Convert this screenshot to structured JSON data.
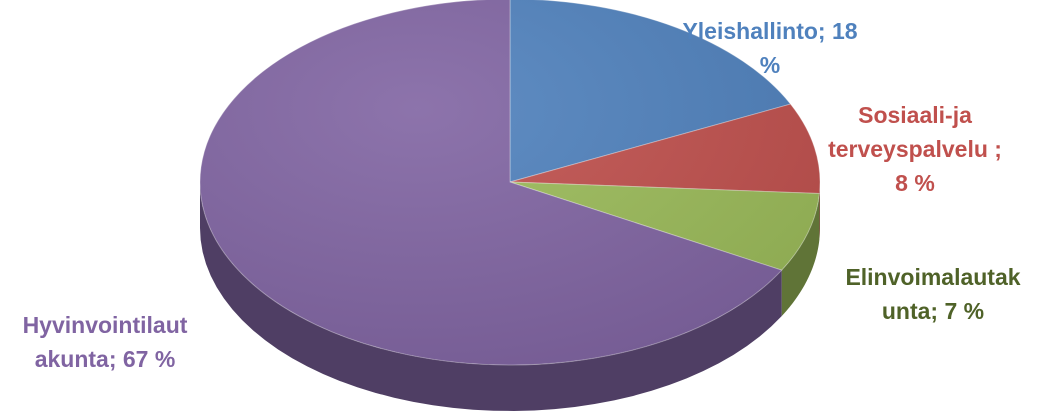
{
  "chart_data": {
    "type": "pie",
    "three_d": true,
    "slices": [
      {
        "name": "Yleishallinto",
        "value": 18,
        "color": "#4F81BD",
        "label_lines": [
          "Yleishallinto; 18",
          "%"
        ]
      },
      {
        "name": "Sosiaali-ja terveyspalvelu",
        "value": 8,
        "color": "#C0504D",
        "label_lines": [
          "Sosiaali-ja",
          "terveyspalvelu ;",
          "8 %"
        ]
      },
      {
        "name": "Elinvoimalautakunta",
        "value": 7,
        "color": "#9BBB59",
        "label_lines": [
          "Elinvoimalautak",
          "unta; 7 %"
        ]
      },
      {
        "name": "Hyvinvointilautakunta",
        "value": 67,
        "color": "#8064A2",
        "label_lines": [
          "Hyvinvointilaut",
          "akunta; 67 %"
        ]
      }
    ],
    "legend": "none"
  }
}
